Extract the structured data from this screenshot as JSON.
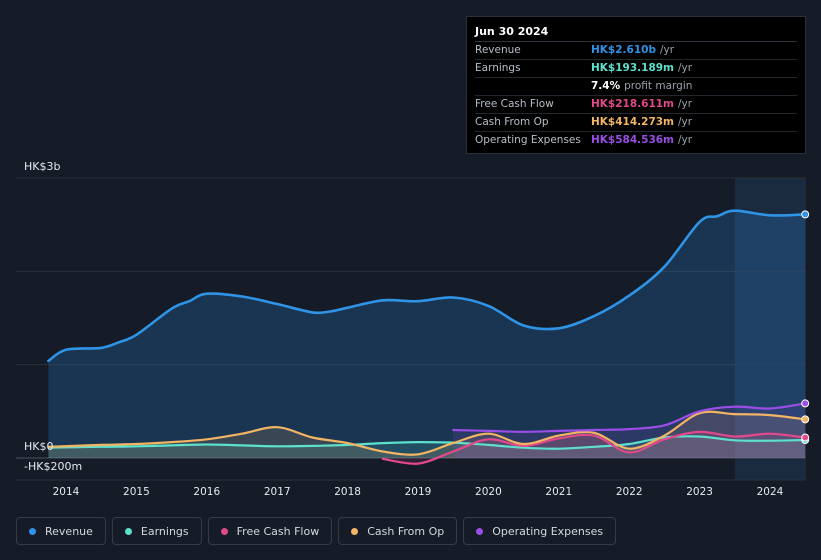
{
  "chart_data": {
    "type": "area",
    "title": "",
    "xlabel": "",
    "ylabel": "",
    "ylim": [
      -200,
      3000
    ],
    "y_tick_labels": [
      "HK$3b",
      "HK$0",
      "-HK$200m"
    ],
    "x_ticks": [
      2014,
      2015,
      2016,
      2017,
      2018,
      2019,
      2020,
      2021,
      2022,
      2023,
      2024
    ],
    "x_tick_labels": [
      "2014",
      "2015",
      "2016",
      "2017",
      "2018",
      "2019",
      "2020",
      "2021",
      "2022",
      "2023",
      "2024"
    ],
    "forecast_shade_from": 2023.5,
    "series": [
      {
        "name": "Revenue",
        "key": "revenue",
        "color": "#2f93e6",
        "x": [
          2013.75,
          2014.0,
          2014.5,
          2014.75,
          2015.0,
          2015.5,
          2015.75,
          2016.0,
          2016.5,
          2017.0,
          2017.5,
          2017.75,
          2018.0,
          2018.5,
          2019.0,
          2019.5,
          2020.0,
          2020.5,
          2021.0,
          2021.5,
          2022.0,
          2022.5,
          2023.0,
          2023.25,
          2023.5,
          2024.0,
          2024.5
        ],
        "values": [
          1040,
          1160,
          1180,
          1240,
          1320,
          1600,
          1680,
          1760,
          1730,
          1650,
          1560,
          1570,
          1610,
          1690,
          1680,
          1720,
          1630,
          1420,
          1390,
          1520,
          1740,
          2050,
          2530,
          2590,
          2650,
          2600,
          2610
        ]
      },
      {
        "name": "Earnings",
        "key": "earnings",
        "color": "#5de0cc",
        "x": [
          2013.75,
          2014.5,
          2015.0,
          2015.5,
          2016.0,
          2016.5,
          2017.0,
          2017.5,
          2018.0,
          2018.5,
          2019.0,
          2019.5,
          2020.0,
          2020.5,
          2021.0,
          2021.5,
          2022.0,
          2022.5,
          2023.0,
          2023.5,
          2024.0,
          2024.5
        ],
        "values": [
          110,
          120,
          125,
          135,
          145,
          135,
          125,
          130,
          140,
          160,
          170,
          165,
          140,
          110,
          100,
          120,
          150,
          220,
          230,
          190,
          185,
          193
        ]
      },
      {
        "name": "Free Cash Flow",
        "key": "fcf",
        "color": "#e2498a",
        "x": [
          2018.5,
          2019.0,
          2019.5,
          2020.0,
          2020.5,
          2021.0,
          2021.5,
          2022.0,
          2022.5,
          2023.0,
          2023.5,
          2024.0,
          2024.5
        ],
        "values": [
          -10,
          -60,
          70,
          200,
          130,
          210,
          240,
          60,
          200,
          280,
          230,
          260,
          219
        ]
      },
      {
        "name": "Cash From Op",
        "key": "cfo",
        "color": "#f2b564",
        "x": [
          2013.75,
          2014.5,
          2015.0,
          2015.5,
          2016.0,
          2016.5,
          2017.0,
          2017.5,
          2018.0,
          2018.5,
          2019.0,
          2019.5,
          2020.0,
          2020.5,
          2021.0,
          2021.5,
          2022.0,
          2022.5,
          2023.0,
          2023.5,
          2024.0,
          2024.5
        ],
        "values": [
          120,
          140,
          150,
          170,
          200,
          260,
          330,
          220,
          160,
          70,
          40,
          160,
          260,
          150,
          240,
          270,
          100,
          240,
          480,
          470,
          460,
          414
        ]
      },
      {
        "name": "Operating Expenses",
        "key": "opex",
        "color": "#9a4ee6",
        "x": [
          2019.5,
          2020.0,
          2020.5,
          2021.0,
          2021.5,
          2022.0,
          2022.5,
          2023.0,
          2023.5,
          2024.0,
          2024.5
        ],
        "values": [
          300,
          290,
          280,
          290,
          300,
          310,
          350,
          500,
          550,
          530,
          585
        ]
      }
    ]
  },
  "tooltip": {
    "date": "Jun 30 2024",
    "rows": [
      {
        "label": "Revenue",
        "value": "HK$2.610b",
        "unit": "/yr",
        "color": "#2f93e6"
      },
      {
        "label": "Earnings",
        "value": "HK$193.189m",
        "unit": "/yr",
        "color": "#5de0cc"
      },
      {
        "label": "",
        "value": "7.4%",
        "unit": "profit margin",
        "color": "#ffffff"
      },
      {
        "label": "Free Cash Flow",
        "value": "HK$218.611m",
        "unit": "/yr",
        "color": "#e2498a"
      },
      {
        "label": "Cash From Op",
        "value": "HK$414.273m",
        "unit": "/yr",
        "color": "#f2b564"
      },
      {
        "label": "Operating Expenses",
        "value": "HK$584.536m",
        "unit": "/yr",
        "color": "#9a4ee6"
      }
    ]
  },
  "legend": [
    {
      "label": "Revenue",
      "color": "#2f93e6"
    },
    {
      "label": "Earnings",
      "color": "#5de0cc"
    },
    {
      "label": "Free Cash Flow",
      "color": "#e2498a"
    },
    {
      "label": "Cash From Op",
      "color": "#f2b564"
    },
    {
      "label": "Operating Expenses",
      "color": "#9a4ee6"
    }
  ]
}
